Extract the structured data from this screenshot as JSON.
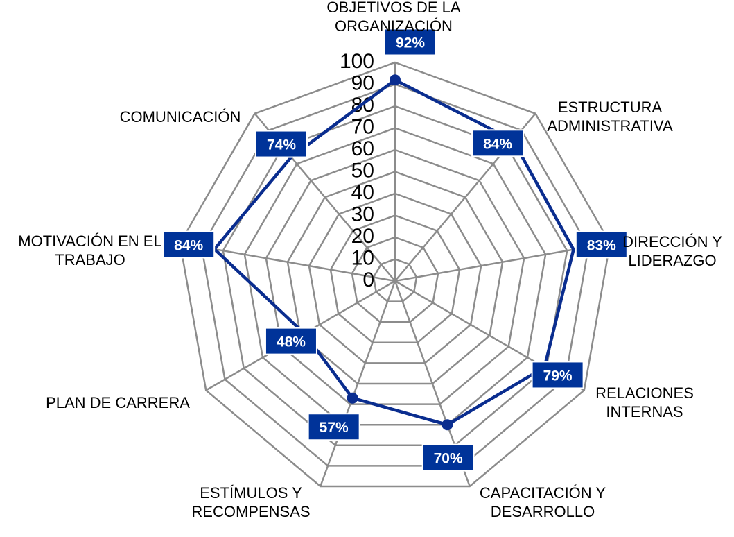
{
  "chart_data": {
    "type": "radar",
    "categories": [
      "OBJETIVOS DE LA ORGANIZACIÓN",
      "ESTRUCTURA ADMINISTRATIVA",
      "DIRECCIÓN Y LIDERAZGO",
      "RELACIONES INTERNAS",
      "CAPACITACIÓN Y DESARROLLO",
      "ESTÍMULOS Y RECOMPENSAS",
      "PLAN DE CARRERA",
      "MOTIVACIÓN EN EL TRABAJO",
      "COMUNICACIÓN"
    ],
    "category_label_lines": [
      [
        "OBJETIVOS DE LA",
        "ORGANIZACIÓN"
      ],
      [
        "ESTRUCTURA",
        "ADMINISTRATIVA"
      ],
      [
        "DIRECCIÓN Y",
        "LIDERAZGO"
      ],
      [
        "RELACIONES",
        "INTERNAS"
      ],
      [
        "CAPACITACIÓN Y",
        "DESARROLLO"
      ],
      [
        "ESTÍMULOS Y",
        "RECOMPENSAS"
      ],
      [
        "PLAN DE CARRERA"
      ],
      [
        "MOTIVACIÓN EN EL",
        "TRABAJO"
      ],
      [
        "COMUNICACIÓN"
      ]
    ],
    "values": [
      92,
      84,
      83,
      79,
      70,
      57,
      48,
      84,
      74
    ],
    "data_labels": [
      "92%",
      "84%",
      "83%",
      "79%",
      "70%",
      "57%",
      "48%",
      "84%",
      "74%"
    ],
    "rlim": [
      0,
      100
    ],
    "ticks": [
      "0",
      "10",
      "20",
      "30",
      "40",
      "50",
      "60",
      "70",
      "80",
      "90",
      "100"
    ],
    "grid": true,
    "legend": "none",
    "colors": {
      "series_line": "#0a2d8f",
      "label_box": "#003399",
      "label_text": "#ffffff",
      "grid": "#8c8c8c"
    }
  }
}
